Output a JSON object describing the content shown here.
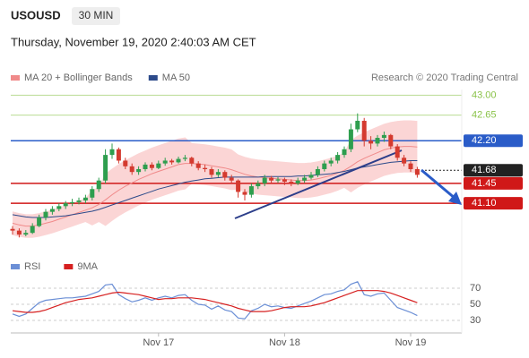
{
  "header": {
    "symbol": "USOUSD",
    "timeframe": "30 MIN",
    "datetime": "Thursday, November 19, 2020 2:40:03 AM CET"
  },
  "credit": "Research © 2020 Trading Central",
  "chart_data": {
    "type": "candlestick",
    "categories": [
      null,
      null,
      null,
      null,
      null,
      null,
      null,
      null,
      null,
      null,
      null,
      null,
      null,
      null,
      null,
      null,
      null,
      null,
      null,
      null,
      null,
      null,
      "Nov 17",
      null,
      null,
      null,
      null,
      null,
      null,
      null,
      null,
      null,
      null,
      null,
      null,
      null,
      null,
      null,
      null,
      null,
      null,
      "Nov 18",
      null,
      null,
      null,
      null,
      null,
      null,
      null,
      null,
      null,
      null,
      null,
      null,
      null,
      null,
      null,
      null,
      null,
      null,
      "Nov 19",
      null
    ],
    "up_color": "#2e9e4e",
    "down_color": "#d43a2f",
    "candles": [
      [
        40.65,
        40.7,
        40.55,
        40.62
      ],
      [
        40.62,
        40.66,
        40.5,
        40.55
      ],
      [
        40.55,
        40.63,
        40.52,
        40.58
      ],
      [
        40.58,
        40.75,
        40.56,
        40.7
      ],
      [
        40.7,
        40.9,
        40.68,
        40.85
      ],
      [
        40.85,
        41.0,
        40.8,
        40.95
      ],
      [
        40.95,
        41.05,
        40.9,
        41.0
      ],
      [
        41.0,
        41.1,
        40.96,
        41.05
      ],
      [
        41.05,
        41.14,
        41.0,
        41.1
      ],
      [
        41.1,
        41.18,
        41.05,
        41.12
      ],
      [
        41.12,
        41.2,
        41.08,
        41.15
      ],
      [
        41.15,
        41.25,
        41.1,
        41.2
      ],
      [
        41.2,
        41.4,
        41.15,
        41.35
      ],
      [
        41.35,
        41.55,
        41.3,
        41.5
      ],
      [
        41.5,
        42.05,
        41.45,
        41.95
      ],
      [
        41.95,
        42.15,
        41.88,
        42.05
      ],
      [
        42.05,
        42.08,
        41.8,
        41.85
      ],
      [
        41.85,
        41.9,
        41.7,
        41.75
      ],
      [
        41.75,
        41.8,
        41.6,
        41.65
      ],
      [
        41.65,
        41.75,
        41.6,
        41.7
      ],
      [
        41.7,
        41.82,
        41.66,
        41.78
      ],
      [
        41.78,
        41.82,
        41.68,
        41.72
      ],
      [
        41.72,
        41.85,
        41.7,
        41.8
      ],
      [
        41.8,
        41.9,
        41.76,
        41.85
      ],
      [
        41.85,
        41.88,
        41.78,
        41.82
      ],
      [
        41.82,
        41.92,
        41.8,
        41.88
      ],
      [
        41.88,
        41.95,
        41.84,
        41.9
      ],
      [
        41.9,
        41.92,
        41.75,
        41.8
      ],
      [
        41.8,
        41.84,
        41.68,
        41.72
      ],
      [
        41.72,
        41.78,
        41.65,
        41.7
      ],
      [
        41.7,
        41.74,
        41.55,
        41.6
      ],
      [
        41.6,
        41.7,
        41.56,
        41.65
      ],
      [
        41.65,
        41.68,
        41.5,
        41.55
      ],
      [
        41.55,
        41.6,
        41.45,
        41.5
      ],
      [
        41.5,
        41.52,
        41.2,
        41.3
      ],
      [
        41.3,
        41.35,
        41.15,
        41.25
      ],
      [
        41.25,
        41.45,
        41.2,
        41.4
      ],
      [
        41.4,
        41.5,
        41.35,
        41.45
      ],
      [
        41.45,
        41.6,
        41.4,
        41.55
      ],
      [
        41.55,
        41.58,
        41.45,
        41.5
      ],
      [
        41.5,
        41.56,
        41.46,
        41.52
      ],
      [
        41.52,
        41.55,
        41.42,
        41.48
      ],
      [
        41.48,
        41.52,
        41.4,
        41.45
      ],
      [
        41.45,
        41.55,
        41.42,
        41.5
      ],
      [
        41.5,
        41.6,
        41.46,
        41.55
      ],
      [
        41.55,
        41.65,
        41.52,
        41.6
      ],
      [
        41.6,
        41.75,
        41.56,
        41.7
      ],
      [
        41.7,
        41.85,
        41.66,
        41.8
      ],
      [
        41.8,
        41.9,
        41.75,
        41.85
      ],
      [
        41.85,
        42.0,
        41.8,
        41.95
      ],
      [
        41.95,
        42.1,
        41.9,
        42.05
      ],
      [
        42.05,
        42.5,
        42.0,
        42.4
      ],
      [
        42.4,
        42.68,
        42.35,
        42.55
      ],
      [
        42.55,
        42.6,
        42.1,
        42.2
      ],
      [
        42.2,
        42.28,
        42.05,
        42.15
      ],
      [
        42.15,
        42.3,
        42.1,
        42.25
      ],
      [
        42.25,
        42.36,
        42.18,
        42.3
      ],
      [
        42.3,
        42.32,
        42.05,
        42.1
      ],
      [
        42.1,
        42.14,
        41.85,
        41.9
      ],
      [
        41.9,
        41.95,
        41.75,
        41.8
      ],
      [
        41.8,
        41.84,
        41.65,
        41.7
      ],
      [
        41.7,
        41.74,
        41.55,
        41.6
      ]
    ],
    "series": [
      {
        "name": "MA 20 + Bollinger Bands",
        "color": "#f08a8a",
        "band_color": "#fbd5d5",
        "values": [
          40.75,
          40.72,
          40.7,
          40.7,
          40.72,
          40.75,
          40.78,
          40.82,
          40.86,
          40.9,
          40.94,
          40.98,
          41.02,
          41.08,
          41.16,
          41.25,
          41.33,
          41.4,
          41.46,
          41.52,
          41.57,
          41.62,
          41.66,
          41.7,
          41.74,
          41.78,
          41.8,
          41.8,
          41.79,
          41.78,
          41.76,
          41.74,
          41.72,
          41.69,
          41.65,
          41.61,
          41.58,
          41.56,
          41.55,
          41.54,
          41.53,
          41.52,
          41.51,
          41.5,
          41.5,
          41.51,
          41.53,
          41.56,
          41.59,
          41.63,
          41.68,
          41.75,
          41.83,
          41.89,
          41.94,
          41.99,
          42.04,
          42.07,
          42.09,
          42.1,
          42.1,
          42.09
        ],
        "upper": [
          40.95,
          40.92,
          40.9,
          40.9,
          40.92,
          40.95,
          40.98,
          41.02,
          41.06,
          41.1,
          41.14,
          41.18,
          41.32,
          41.38,
          41.61,
          41.7,
          41.78,
          41.85,
          41.91,
          41.97,
          42.02,
          42.07,
          42.11,
          42.15,
          42.19,
          42.23,
          42.25,
          42.15,
          42.14,
          42.13,
          42.11,
          42.09,
          42.07,
          42.04,
          41.95,
          41.91,
          41.88,
          41.86,
          41.85,
          41.84,
          41.83,
          41.82,
          41.81,
          41.8,
          41.8,
          41.81,
          41.83,
          41.86,
          41.89,
          41.93,
          41.98,
          42.2,
          42.28,
          42.34,
          42.39,
          42.44,
          42.49,
          42.52,
          42.54,
          42.55,
          42.55,
          42.54
        ],
        "lower": [
          40.55,
          40.52,
          40.5,
          40.5,
          40.52,
          40.55,
          40.58,
          40.62,
          40.66,
          40.7,
          40.74,
          40.78,
          40.72,
          40.78,
          40.71,
          40.8,
          40.88,
          40.95,
          41.01,
          41.07,
          41.12,
          41.17,
          41.21,
          41.25,
          41.29,
          41.33,
          41.35,
          41.45,
          41.44,
          41.43,
          41.41,
          41.39,
          41.37,
          41.34,
          41.35,
          41.31,
          41.28,
          41.26,
          41.25,
          41.24,
          41.23,
          41.22,
          41.21,
          41.2,
          41.2,
          41.21,
          41.23,
          41.26,
          41.29,
          41.33,
          41.38,
          41.3,
          41.38,
          41.44,
          41.49,
          41.54,
          41.59,
          41.62,
          41.64,
          41.65,
          41.65,
          41.64
        ]
      },
      {
        "name": "MA 50",
        "color": "#2c4a8a",
        "values": [
          40.9,
          40.88,
          40.86,
          40.85,
          40.85,
          40.85,
          40.86,
          40.87,
          40.88,
          40.9,
          40.92,
          40.94,
          40.96,
          40.99,
          41.03,
          41.07,
          41.11,
          41.15,
          41.19,
          41.23,
          41.27,
          41.31,
          41.35,
          41.38,
          41.41,
          41.44,
          41.47,
          41.49,
          41.51,
          41.53,
          41.54,
          41.55,
          41.56,
          41.56,
          41.56,
          41.56,
          41.56,
          41.56,
          41.57,
          41.57,
          41.57,
          41.57,
          41.57,
          41.58,
          41.58,
          41.59,
          41.6,
          41.61,
          41.62,
          41.64,
          41.66,
          41.69,
          41.72,
          41.74,
          41.76,
          41.78,
          41.8,
          41.82,
          41.83,
          41.84,
          41.85,
          41.85
        ]
      }
    ],
    "ylim": [
      40.3,
      43.1
    ],
    "levels": [
      {
        "value": 43.0,
        "label": "43.00",
        "color": "#8bc34a",
        "style": "text"
      },
      {
        "value": 42.65,
        "label": "42.65",
        "color": "#8bc34a",
        "style": "text"
      },
      {
        "value": 42.2,
        "label": "42.20",
        "color": "#2a5cc8",
        "style": "box"
      },
      {
        "value": 41.68,
        "label": "41.68",
        "color": "#222222",
        "style": "box",
        "dashed": true
      },
      {
        "value": 41.45,
        "label": "41.45",
        "color": "#d01818",
        "style": "box"
      },
      {
        "value": 41.1,
        "label": "41.10",
        "color": "#d01818",
        "style": "box"
      }
    ],
    "rsi": {
      "ylim": [
        20,
        80
      ],
      "yticks": [
        70,
        50,
        30
      ],
      "series": [
        {
          "name": "RSI",
          "color": "#6b8fd6",
          "values": [
            38,
            35,
            38,
            45,
            52,
            55,
            56,
            57,
            58,
            58,
            59,
            60,
            63,
            66,
            74,
            75,
            62,
            57,
            53,
            55,
            58,
            55,
            58,
            60,
            58,
            61,
            62,
            55,
            50,
            49,
            44,
            48,
            43,
            41,
            33,
            32,
            42,
            45,
            50,
            47,
            48,
            46,
            45,
            48,
            51,
            54,
            58,
            62,
            63,
            66,
            68,
            75,
            78,
            62,
            60,
            63,
            64,
            55,
            46,
            43,
            40,
            36
          ]
        },
        {
          "name": "9MA",
          "color": "#d62020",
          "values": [
            42,
            41,
            40,
            40,
            41,
            43,
            46,
            49,
            52,
            54,
            56,
            57,
            58,
            60,
            62,
            64,
            65,
            64,
            63,
            62,
            60,
            58,
            56,
            57,
            57,
            58,
            58,
            58,
            57,
            56,
            54,
            52,
            50,
            48,
            45,
            43,
            41,
            41,
            41,
            42,
            44,
            46,
            47,
            47,
            47,
            48,
            50,
            52,
            55,
            58,
            61,
            64,
            67,
            67,
            67,
            67,
            66,
            64,
            61,
            58,
            55,
            52
          ]
        }
      ]
    }
  }
}
